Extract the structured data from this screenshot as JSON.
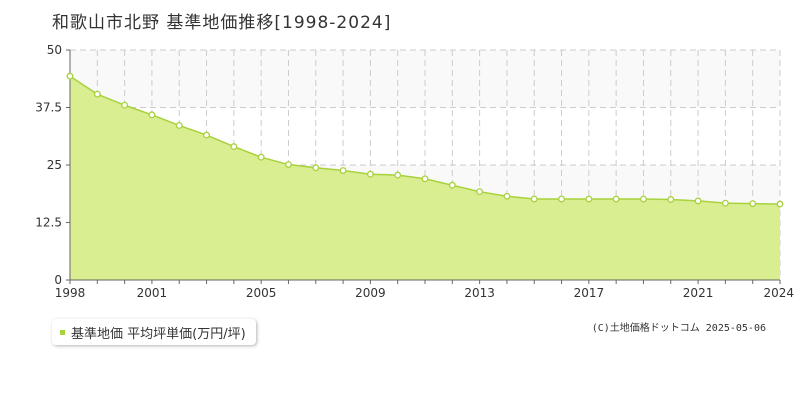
{
  "title": "和歌山市北野 基準地価推移[1998-2024]",
  "legend": {
    "label": "基準地価 平均坪単価(万円/坪)",
    "color": "#a8d23c"
  },
  "credit": "(C)土地価格ドットコム 2025-05-06",
  "chart_data": {
    "type": "area",
    "title": "和歌山市北野 基準地価推移[1998-2024]",
    "xlim": [
      1998,
      2024
    ],
    "ylim": [
      0,
      50
    ],
    "y_ticks": [
      0,
      12.5,
      25,
      37.5,
      50
    ],
    "y_tick_labels": [
      "0",
      "12.5",
      "25",
      "37.5",
      "50"
    ],
    "x_tick_labels": [
      "1998",
      "2001",
      "2005",
      "2009",
      "2013",
      "2017",
      "2021",
      "2024"
    ],
    "grid": true,
    "legend_position": "bottom-left",
    "series": [
      {
        "name": "基準地価 平均坪単価(万円/坪)",
        "color": "#a8d23c",
        "fill": "#d9ee90",
        "x": [
          1998,
          1999,
          2000,
          2001,
          2002,
          2003,
          2004,
          2005,
          2006,
          2007,
          2008,
          2009,
          2010,
          2011,
          2012,
          2013,
          2014,
          2015,
          2016,
          2017,
          2018,
          2019,
          2020,
          2021,
          2022,
          2023,
          2024
        ],
        "values": [
          44.3,
          40.4,
          38.0,
          35.9,
          33.6,
          31.5,
          29.0,
          26.7,
          25.1,
          24.4,
          23.8,
          23.0,
          22.8,
          22.0,
          20.6,
          19.2,
          18.2,
          17.6,
          17.6,
          17.6,
          17.6,
          17.6,
          17.5,
          17.2,
          16.7,
          16.6,
          16.5
        ]
      }
    ]
  }
}
